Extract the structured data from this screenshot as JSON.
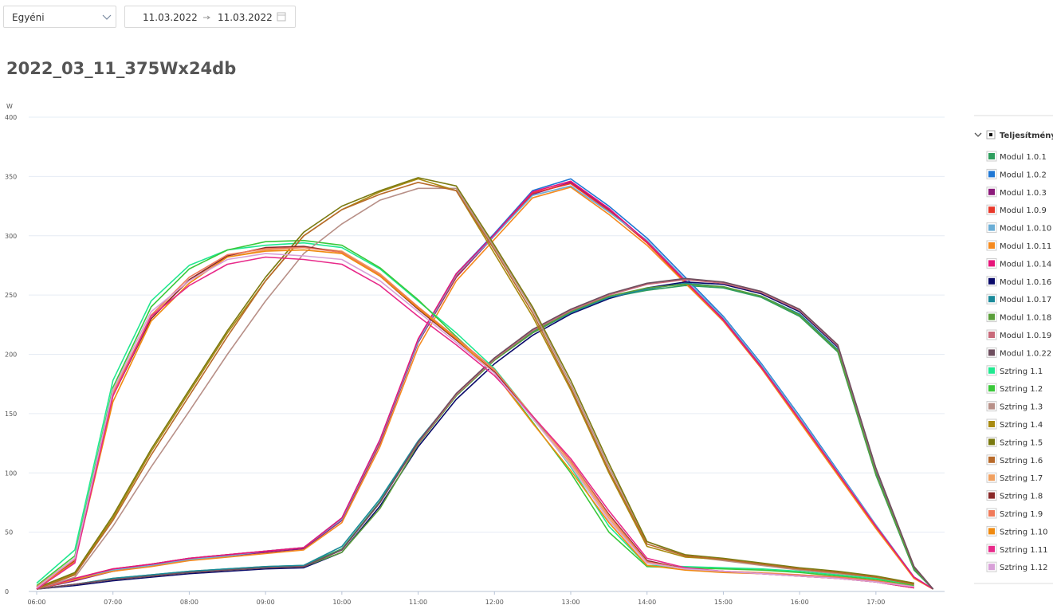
{
  "controls": {
    "range_type": "Egyéni",
    "start_date": "11.03.2022",
    "end_date": "11.03.2022"
  },
  "chart_data": {
    "type": "line",
    "title": "2022_03_11_375Wx24db",
    "y_label": "W",
    "legend_title": "Teljesítmény",
    "grid": true,
    "xlim": [
      6,
      17.9
    ],
    "ylim": [
      0,
      400
    ],
    "yticks": [
      0,
      50,
      100,
      150,
      200,
      250,
      300,
      350,
      400
    ],
    "xticks": [
      {
        "value": 6,
        "label": "06:00"
      },
      {
        "value": 7,
        "label": "07:00"
      },
      {
        "value": 8,
        "label": "08:00"
      },
      {
        "value": 9,
        "label": "09:00"
      },
      {
        "value": 10,
        "label": "10:00"
      },
      {
        "value": 11,
        "label": "11:00"
      },
      {
        "value": 12,
        "label": "12:00"
      },
      {
        "value": 13,
        "label": "13:00"
      },
      {
        "value": 14,
        "label": "14:00"
      },
      {
        "value": 15,
        "label": "15:00"
      },
      {
        "value": 16,
        "label": "16:00"
      },
      {
        "value": 17,
        "label": "17:00"
      }
    ],
    "x": [
      6,
      6.5,
      7,
      7.5,
      8,
      8.5,
      9,
      9.5,
      10,
      10.5,
      11,
      11.5,
      12,
      12.5,
      13,
      13.5,
      14,
      14.5,
      15,
      15.5,
      16,
      16.5,
      17,
      17.5,
      17.75
    ],
    "series": [
      {
        "name": "Modul 1.0.1",
        "color": "#2e9e5e",
        "values": [
          2,
          6,
          11,
          14,
          17,
          19,
          21,
          22,
          36,
          76,
          126,
          166,
          196,
          219,
          236,
          248,
          254,
          258,
          256,
          248,
          232,
          202,
          98,
          18,
          2
        ]
      },
      {
        "name": "Modul 1.0.2",
        "color": "#1f77d4",
        "values": [
          2,
          10,
          18,
          23,
          28,
          31,
          34,
          37,
          62,
          128,
          212,
          268,
          302,
          338,
          348,
          325,
          298,
          265,
          232,
          192,
          148,
          102,
          56,
          12,
          2
        ]
      },
      {
        "name": "Modul 1.0.3",
        "color": "#8b1a7a",
        "values": [
          2,
          9,
          17,
          22,
          27,
          30,
          33,
          36,
          60,
          125,
          210,
          265,
          300,
          335,
          345,
          322,
          295,
          262,
          230,
          190,
          145,
          100,
          55,
          12,
          2
        ]
      },
      {
        "name": "Modul 1.0.9",
        "color": "#e8382a",
        "values": [
          2,
          11,
          19,
          23,
          28,
          31,
          34,
          37,
          61,
          126,
          211,
          266,
          301,
          336,
          344,
          321,
          294,
          261,
          228,
          188,
          144,
          99,
          54,
          11,
          2
        ]
      },
      {
        "name": "Modul 1.0.10",
        "color": "#6baed6",
        "values": [
          2,
          10,
          18,
          22,
          27,
          30,
          34,
          37,
          61,
          127,
          211,
          267,
          300,
          334,
          342,
          320,
          296,
          263,
          231,
          191,
          147,
          101,
          56,
          12,
          2
        ]
      },
      {
        "name": "Modul 1.0.11",
        "color": "#f58a1f",
        "values": [
          2,
          10,
          17,
          21,
          26,
          29,
          32,
          35,
          58,
          122,
          206,
          262,
          297,
          332,
          341,
          318,
          292,
          260,
          228,
          188,
          143,
          98,
          53,
          11,
          2
        ]
      },
      {
        "name": "Modul 1.0.14",
        "color": "#e6157a",
        "values": [
          2,
          11,
          19,
          23,
          28,
          31,
          34,
          37,
          62,
          128,
          213,
          268,
          301,
          337,
          346,
          323,
          295,
          262,
          229,
          189,
          145,
          100,
          55,
          12,
          2
        ]
      },
      {
        "name": "Modul 1.0.16",
        "color": "#0a0a6a",
        "values": [
          2,
          5,
          9,
          12,
          15,
          17,
          19,
          20,
          33,
          72,
          122,
          162,
          192,
          216,
          234,
          247,
          256,
          261,
          259,
          251,
          236,
          206,
          102,
          20,
          2
        ]
      },
      {
        "name": "Modul 1.0.17",
        "color": "#1a8a9a",
        "values": [
          2,
          6,
          11,
          14,
          17,
          19,
          21,
          22,
          38,
          78,
          127,
          166,
          195,
          218,
          235,
          248,
          255,
          260,
          257,
          249,
          234,
          204,
          100,
          19,
          2
        ]
      },
      {
        "name": "Modul 1.0.18",
        "color": "#5a9e3a",
        "values": [
          2,
          6,
          10,
          13,
          16,
          18,
          20,
          21,
          33,
          70,
          124,
          165,
          195,
          218,
          236,
          249,
          256,
          259,
          257,
          249,
          233,
          203,
          99,
          19,
          2
        ]
      },
      {
        "name": "Modul 1.0.19",
        "color": "#c86a7a",
        "values": [
          2,
          6,
          10,
          13,
          16,
          18,
          20,
          21,
          35,
          75,
          125,
          166,
          196,
          220,
          237,
          250,
          259,
          263,
          260,
          252,
          237,
          207,
          103,
          21,
          2
        ]
      },
      {
        "name": "Modul 1.0.22",
        "color": "#6e4e5e",
        "values": [
          2,
          6,
          10,
          13,
          16,
          18,
          20,
          21,
          35,
          75,
          126,
          167,
          197,
          221,
          238,
          251,
          260,
          264,
          261,
          253,
          238,
          208,
          104,
          21,
          2
        ]
      },
      {
        "name": "Sztring 1.1",
        "color": "#20e890",
        "values": [
          7,
          35,
          178,
          245,
          275,
          288,
          292,
          294,
          290,
          272,
          245,
          218,
          188,
          148,
          105,
          55,
          22,
          21,
          20,
          19,
          17,
          14,
          11,
          6,
          null
        ]
      },
      {
        "name": "Sztring 1.2",
        "color": "#3ac83a",
        "values": [
          5,
          30,
          172,
          240,
          272,
          288,
          295,
          296,
          292,
          273,
          246,
          215,
          185,
          143,
          100,
          50,
          21,
          20,
          19,
          18,
          16,
          13,
          10,
          5,
          null
        ]
      },
      {
        "name": "Sztring 1.3",
        "color": "#b89088",
        "values": [
          2,
          12,
          55,
          105,
          152,
          200,
          245,
          285,
          310,
          330,
          340,
          340,
          290,
          238,
          175,
          105,
          42,
          30,
          26,
          22,
          18,
          15,
          12,
          6,
          null
        ]
      },
      {
        "name": "Sztring 1.4",
        "color": "#a88a10",
        "values": [
          3,
          15,
          62,
          118,
          168,
          218,
          262,
          300,
          322,
          337,
          348,
          338,
          285,
          232,
          170,
          100,
          38,
          29,
          27,
          23,
          19,
          16,
          12,
          7,
          null
        ]
      },
      {
        "name": "Sztring 1.5",
        "color": "#7a7a10",
        "values": [
          3,
          16,
          64,
          120,
          170,
          220,
          265,
          303,
          325,
          338,
          349,
          342,
          292,
          240,
          178,
          108,
          42,
          31,
          28,
          24,
          20,
          17,
          13,
          7,
          null
        ]
      },
      {
        "name": "Sztring 1.6",
        "color": "#b86a2a",
        "values": [
          2,
          14,
          60,
          115,
          165,
          215,
          262,
          300,
          322,
          335,
          345,
          338,
          288,
          235,
          172,
          102,
          40,
          30,
          27,
          23,
          19,
          16,
          12,
          6,
          null
        ]
      },
      {
        "name": "Sztring 1.7",
        "color": "#f0a060",
        "values": [
          4,
          28,
          168,
          232,
          262,
          282,
          288,
          290,
          287,
          268,
          240,
          214,
          186,
          146,
          108,
          62,
          24,
          19,
          17,
          16,
          14,
          12,
          9,
          4,
          null
        ]
      },
      {
        "name": "Sztring 1.8",
        "color": "#8a2a2a",
        "values": [
          3,
          26,
          165,
          230,
          263,
          283,
          290,
          291,
          286,
          266,
          238,
          212,
          185,
          148,
          110,
          65,
          26,
          19,
          17,
          15,
          13,
          11,
          8,
          3,
          null
        ]
      },
      {
        "name": "Sztring 1.9",
        "color": "#f07a5a",
        "values": [
          4,
          27,
          166,
          233,
          265,
          284,
          289,
          290,
          286,
          267,
          240,
          214,
          187,
          148,
          110,
          64,
          25,
          19,
          17,
          15,
          14,
          12,
          9,
          4,
          null
        ]
      },
      {
        "name": "Sztring 1.10",
        "color": "#f08a10",
        "values": [
          3,
          25,
          160,
          228,
          260,
          282,
          287,
          288,
          285,
          266,
          239,
          213,
          184,
          142,
          102,
          58,
          22,
          18,
          16,
          15,
          13,
          11,
          8,
          3,
          null
        ]
      },
      {
        "name": "Sztring 1.11",
        "color": "#e82a8a",
        "values": [
          2,
          24,
          165,
          232,
          258,
          276,
          282,
          280,
          276,
          258,
          232,
          208,
          182,
          148,
          112,
          68,
          28,
          20,
          17,
          15,
          13,
          11,
          8,
          3,
          null
        ]
      },
      {
        "name": "Sztring 1.12",
        "color": "#d8a0d8",
        "values": [
          3,
          28,
          170,
          236,
          262,
          280,
          285,
          283,
          280,
          262,
          236,
          210,
          184,
          146,
          106,
          60,
          24,
          19,
          17,
          15,
          13,
          11,
          8,
          4,
          null
        ]
      }
    ]
  }
}
